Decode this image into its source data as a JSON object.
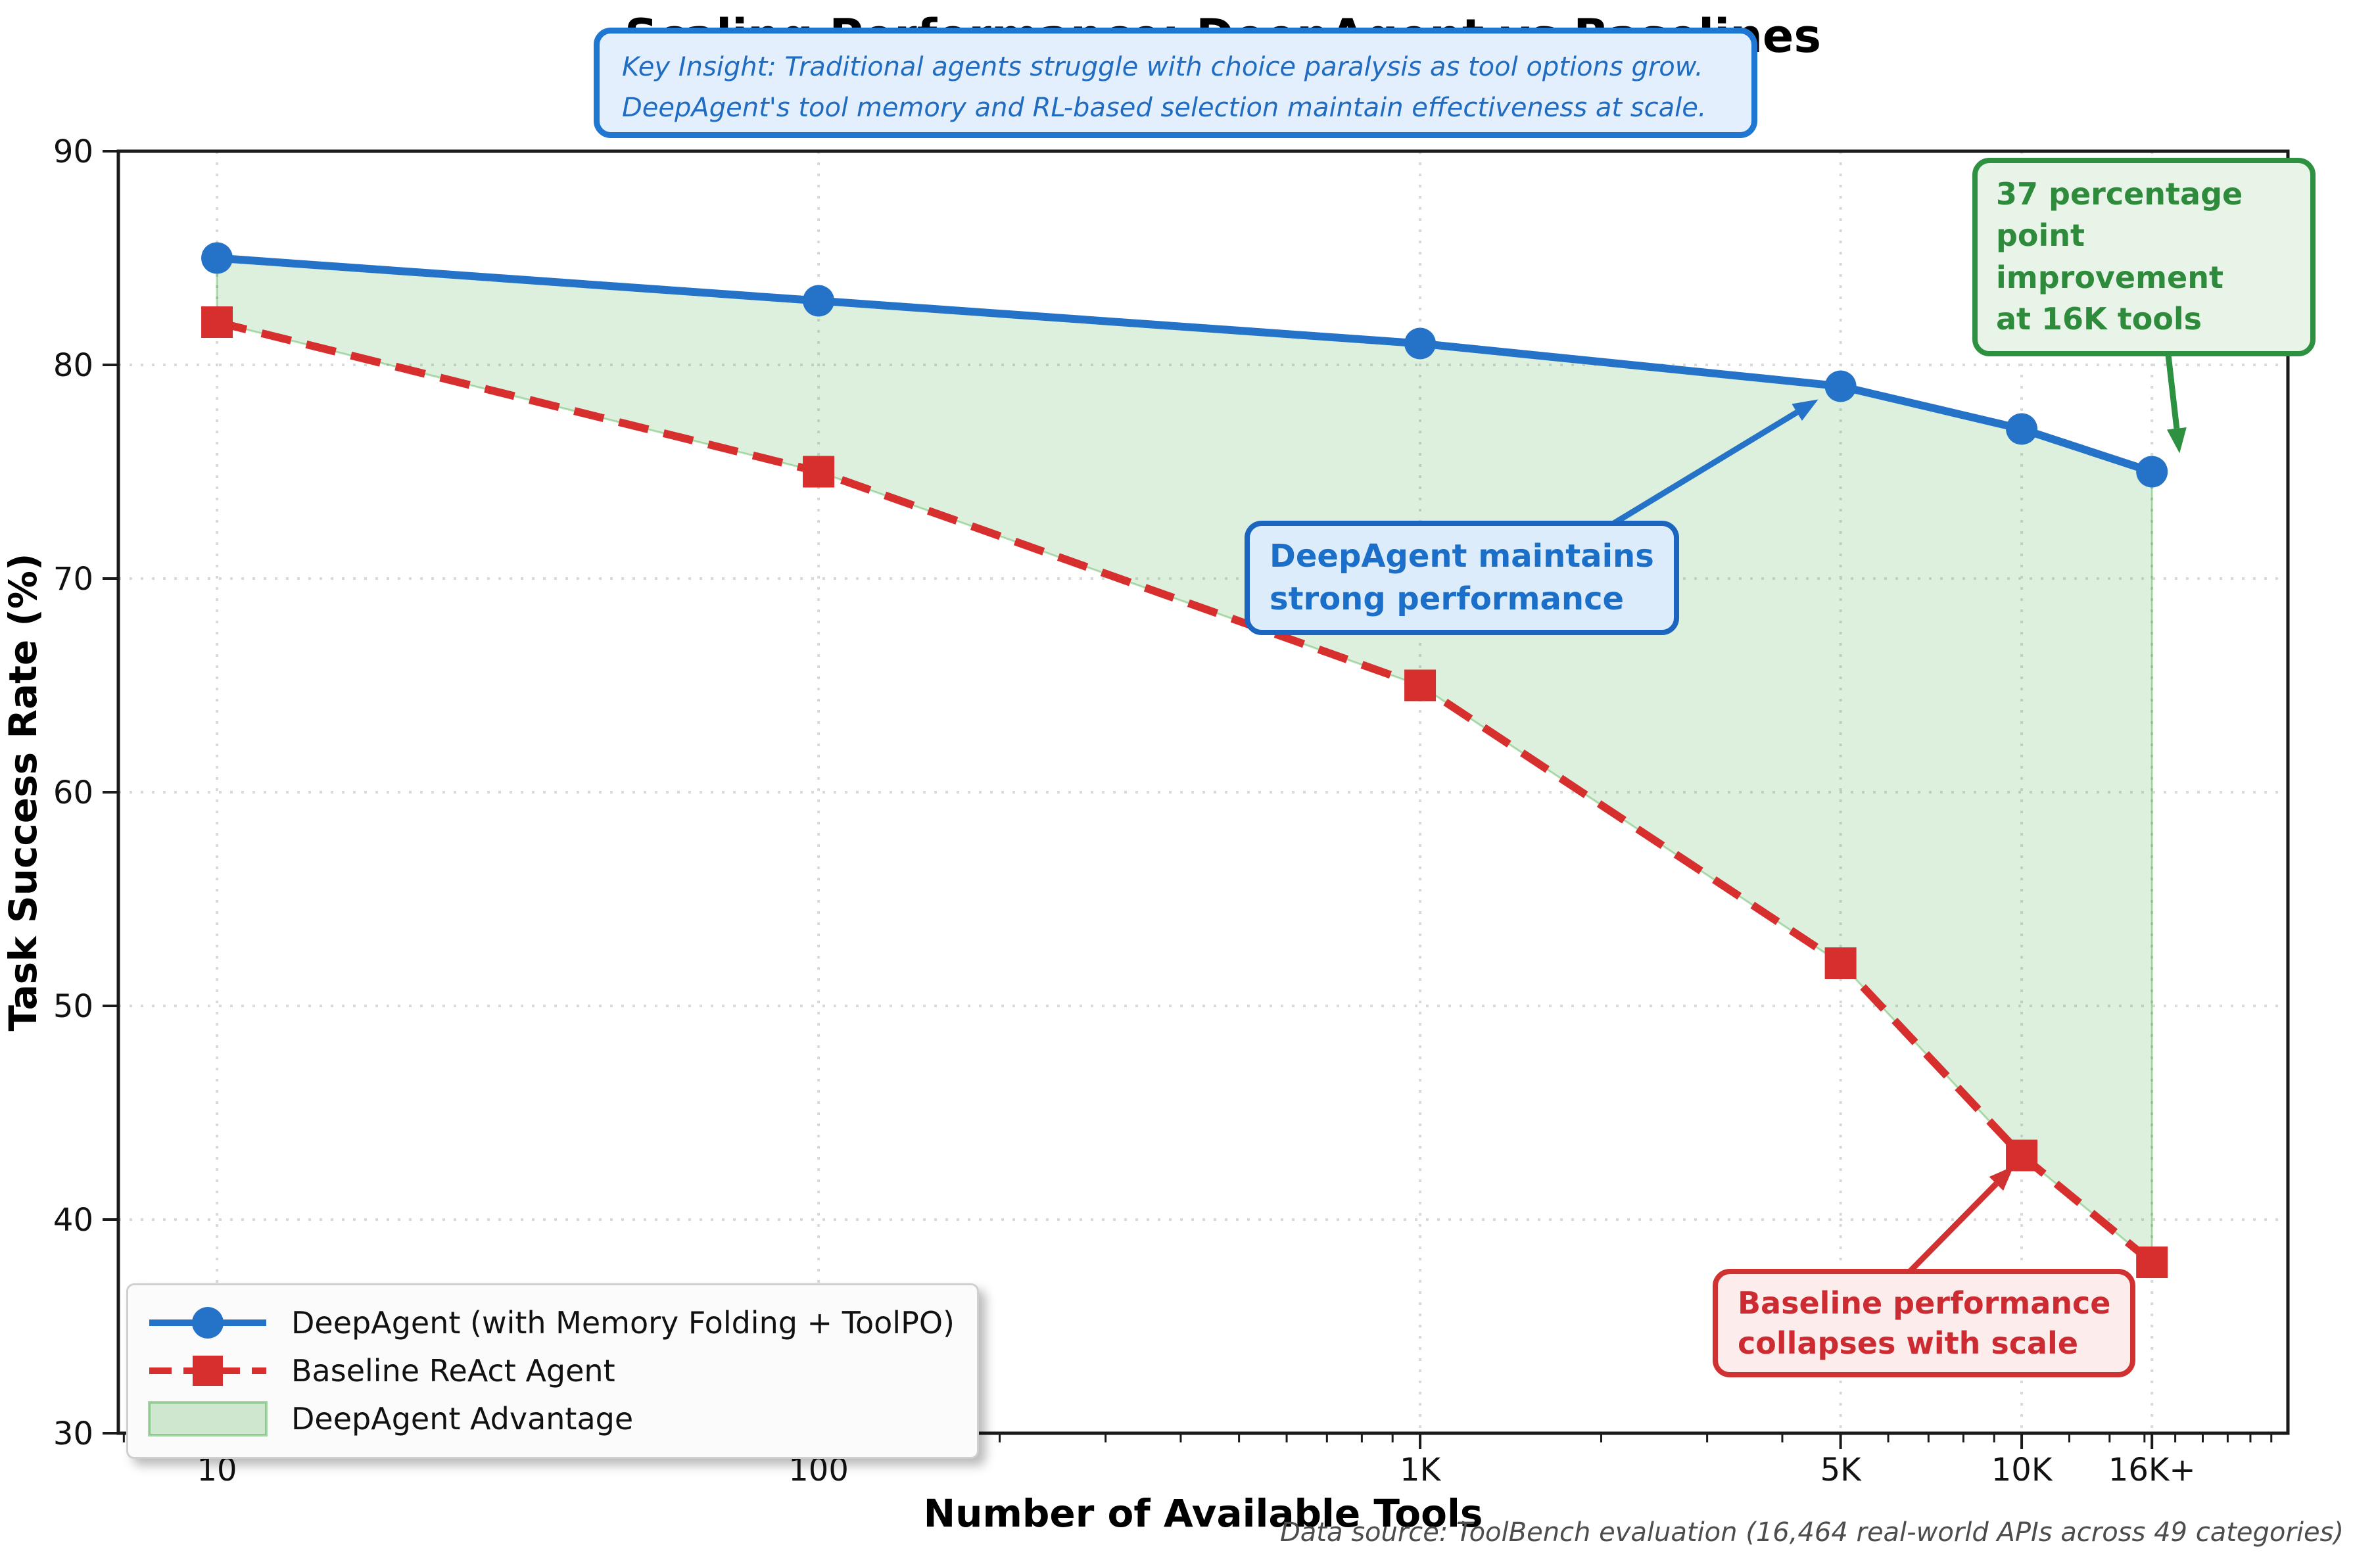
{
  "title": "Scaling Performance: DeepAgent vs Baselines",
  "insight_note": {
    "line1": "Key Insight: Traditional agents struggle with choice paralysis as tool options grow.",
    "line2": "DeepAgent's tool memory and RL-based selection maintain effectiveness at scale."
  },
  "chart_data": {
    "type": "line",
    "title": "Scaling Performance: DeepAgent vs Baselines",
    "xlabel": "Number of Available Tools",
    "ylabel": "Task Success Rate (%)",
    "x_scale": "log",
    "ylim": [
      30,
      90
    ],
    "y_ticks": [
      30,
      40,
      50,
      60,
      70,
      80,
      90
    ],
    "x_ticks": {
      "values": [
        10,
        100,
        1000,
        5000,
        10000,
        16464
      ],
      "labels": [
        "10",
        "100",
        "1K",
        "5K",
        "10K",
        "16K+"
      ]
    },
    "grid": true,
    "legend_position": "lower left",
    "x": [
      10,
      100,
      1000,
      5000,
      10000,
      16464
    ],
    "series": [
      {
        "name": "DeepAgent (with Memory Folding + ToolPO)",
        "color": "#2473c8",
        "marker": "circle",
        "style": "solid",
        "values": [
          85,
          83,
          81,
          79,
          77,
          75
        ]
      },
      {
        "name": "Baseline ReAct Agent",
        "color": "#d62f2e",
        "marker": "square",
        "style": "dashed",
        "values": [
          82,
          75,
          65,
          52,
          43,
          38
        ]
      }
    ],
    "fill_between": {
      "name": "DeepAgent Advantage",
      "color": "#2ca02c",
      "fill_opacity": 0.16,
      "edge_opacity": 0.35
    }
  },
  "annotations": {
    "improvement": {
      "lines": [
        "37 percentage",
        "point improvement",
        "at 16K tools"
      ],
      "color": "#2e8b3c"
    },
    "deepagent": {
      "lines": [
        "DeepAgent maintains",
        "strong performance"
      ],
      "color": "#1b6fc8"
    },
    "baseline": {
      "lines": [
        "Baseline performance",
        "collapses with scale"
      ],
      "color": "#cc2b31"
    }
  },
  "footer": {
    "data_source": "Data source: ToolBench evaluation (16,464 real-world APIs across 49 categories)"
  }
}
